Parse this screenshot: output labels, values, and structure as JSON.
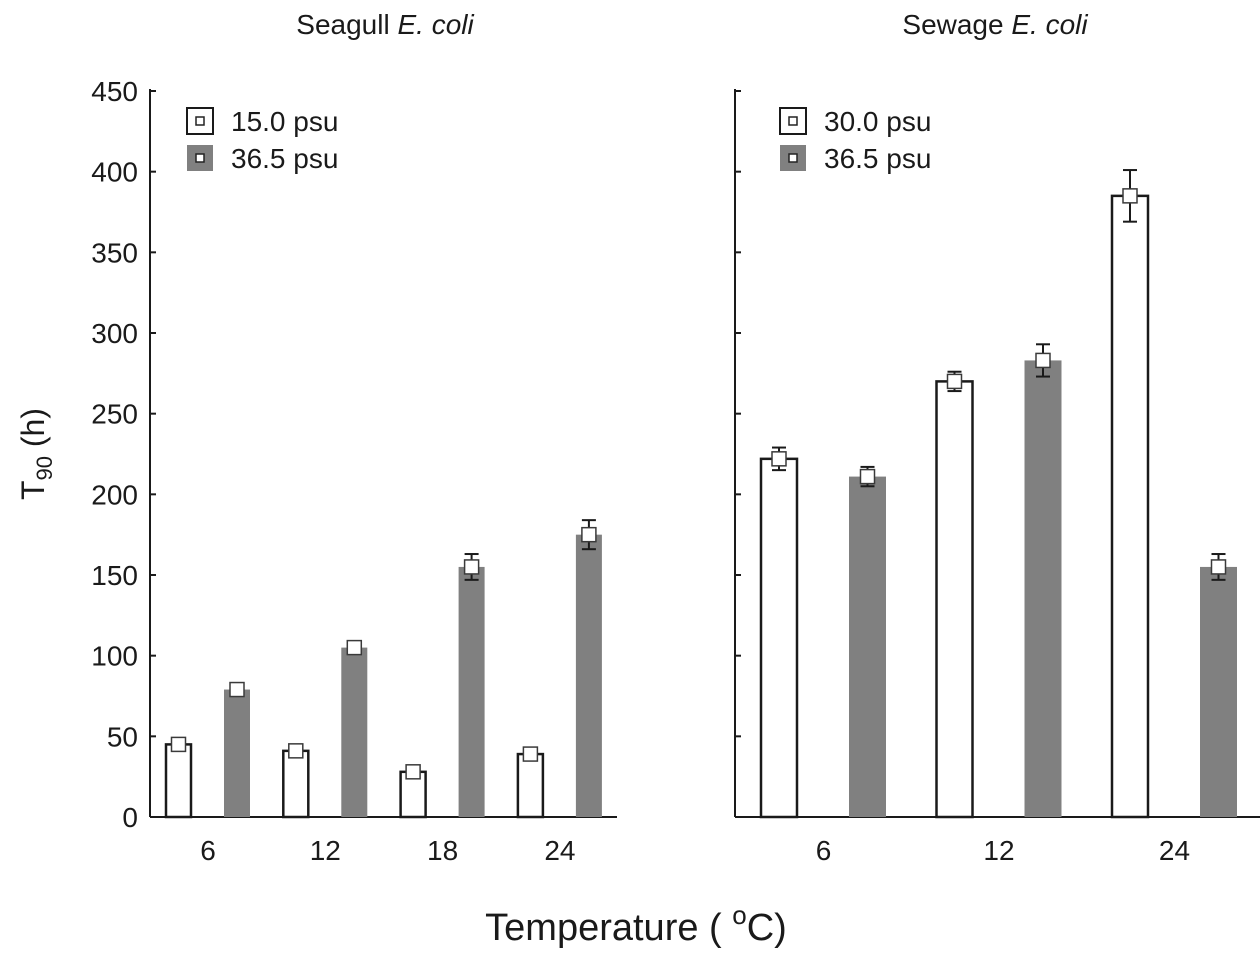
{
  "figure": {
    "ylabel_main": "T",
    "ylabel_sub": "90",
    "ylabel_unit": " (h)",
    "xlabel_main": "Temperature ( ",
    "xlabel_sup": "o",
    "xlabel_end": "C)"
  },
  "colors": {
    "filled_bar": "#808080",
    "open_bar": "#ffffff",
    "axis": "#1a1a1a"
  },
  "chart_data": [
    {
      "type": "bar",
      "title_main": "Seagull ",
      "title_italic": "E. coli",
      "categories": [
        "6",
        "12",
        "18",
        "24"
      ],
      "series": [
        {
          "name": "15.0 psu",
          "style": "open",
          "values": [
            45,
            41,
            28,
            39
          ],
          "errors": [
            null,
            2,
            null,
            null
          ]
        },
        {
          "name": "36.5 psu",
          "style": "filled",
          "values": [
            79,
            105,
            155,
            175
          ],
          "errors": [
            null,
            3,
            8,
            9
          ]
        }
      ],
      "ylim": [
        0,
        450
      ],
      "yticks": [
        0,
        50,
        100,
        150,
        200,
        250,
        300,
        350,
        400,
        450
      ],
      "grid": false,
      "legend_position": "top-left"
    },
    {
      "type": "bar",
      "title_main": "Sewage ",
      "title_italic": "E. coli",
      "categories": [
        "6",
        "12",
        "24"
      ],
      "series": [
        {
          "name": "30.0 psu",
          "style": "open",
          "values": [
            222,
            270,
            385
          ],
          "errors": [
            7,
            6,
            16
          ]
        },
        {
          "name": "36.5 psu",
          "style": "filled",
          "values": [
            211,
            283,
            155
          ],
          "errors": [
            6,
            10,
            8
          ]
        }
      ],
      "ylim": [
        0,
        450
      ],
      "yticks": [
        0,
        50,
        100,
        150,
        200,
        250,
        300,
        350,
        400,
        450
      ],
      "grid": false,
      "legend_position": "top-left"
    }
  ]
}
